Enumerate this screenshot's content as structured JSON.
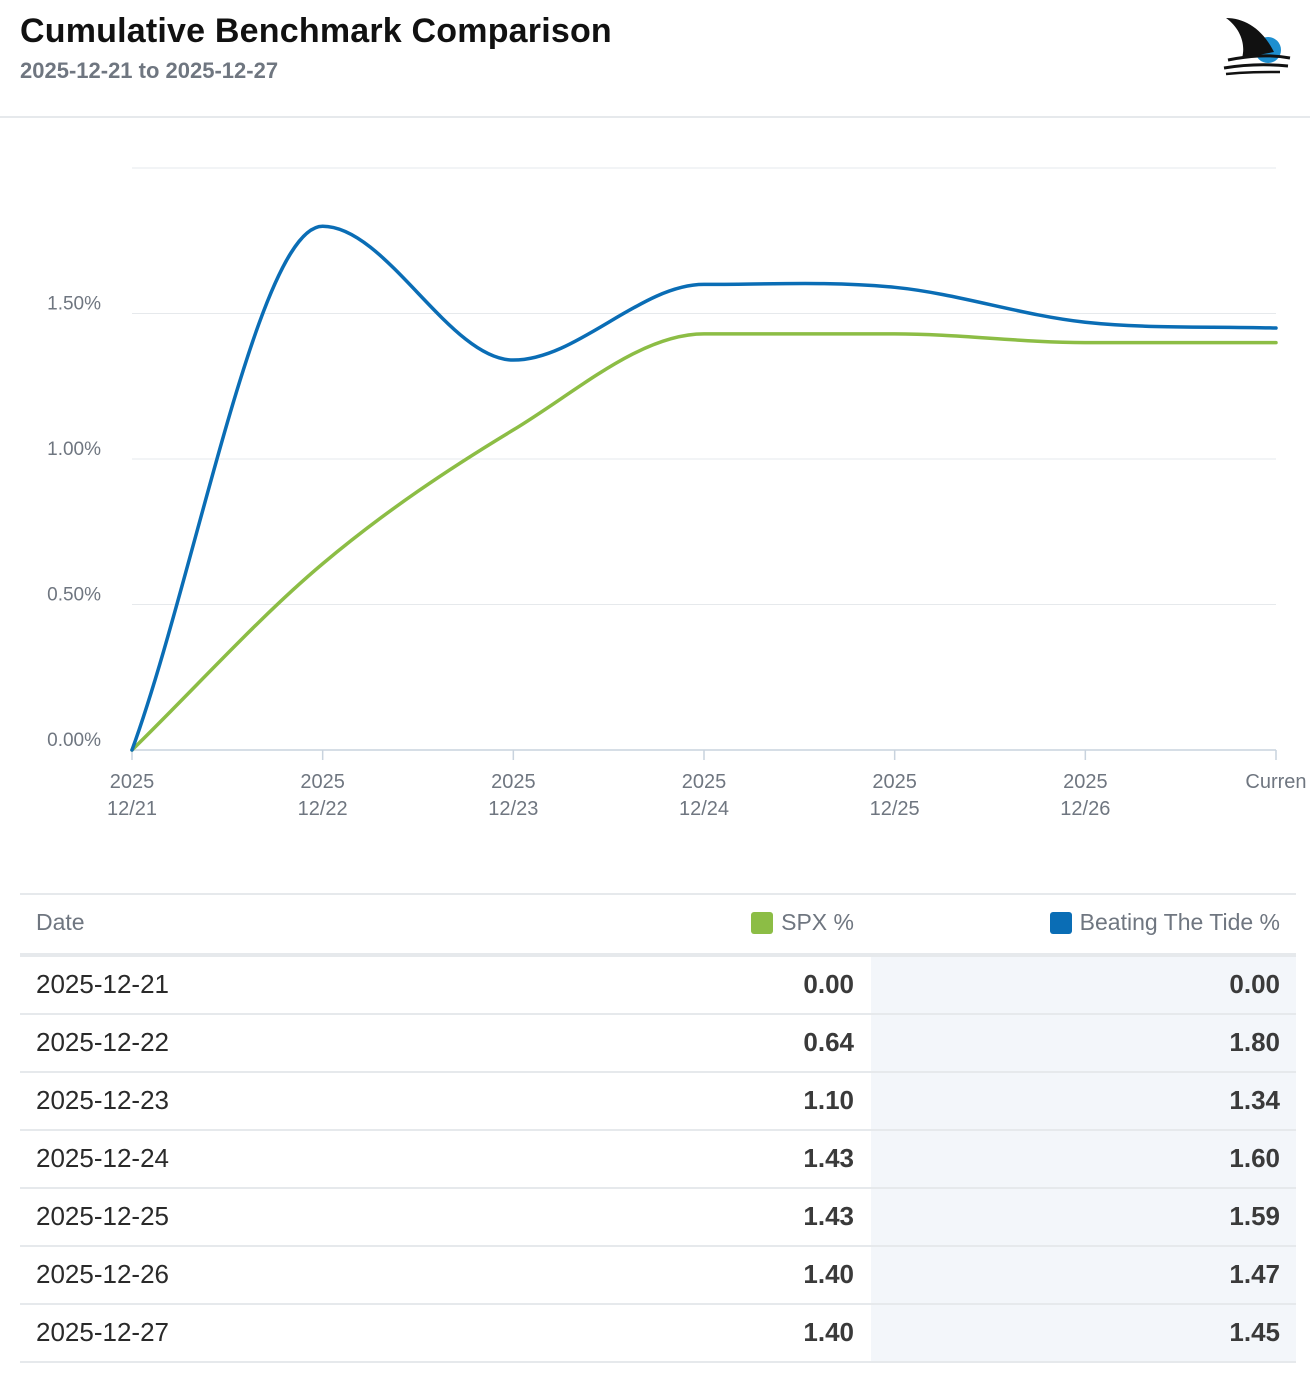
{
  "header": {
    "title": "Cumulative Benchmark Comparison",
    "date_range": "2025-12-21 to 2025-12-27"
  },
  "colors": {
    "spx": "#8cbd45",
    "btt": "#0a6db5",
    "grid": "#e6e9ec",
    "axis_text": "#6f7680"
  },
  "chart_data": {
    "type": "line",
    "x": [
      "2025\n12/21",
      "2025\n12/22",
      "2025\n12/23",
      "2025\n12/24",
      "2025\n12/25",
      "2025\n12/26",
      "Curren"
    ],
    "y_ticks": [
      "0.00%",
      "0.50%",
      "1.00%",
      "1.50%"
    ],
    "ylim": [
      0,
      2.0
    ],
    "grid": true,
    "series": [
      {
        "name": "SPX %",
        "color": "#8cbd45",
        "values": [
          0.0,
          0.64,
          1.1,
          1.43,
          1.43,
          1.4,
          1.4
        ]
      },
      {
        "name": "Beating The Tide %",
        "color": "#0a6db5",
        "values": [
          0.0,
          1.8,
          1.34,
          1.6,
          1.59,
          1.47,
          1.45
        ]
      }
    ]
  },
  "table": {
    "headers": {
      "date": "Date",
      "spx": "SPX %",
      "btt": "Beating The Tide %"
    },
    "rows": [
      {
        "date": "2025-12-21",
        "spx": "0.00",
        "btt": "0.00"
      },
      {
        "date": "2025-12-22",
        "spx": "0.64",
        "btt": "1.80"
      },
      {
        "date": "2025-12-23",
        "spx": "1.10",
        "btt": "1.34"
      },
      {
        "date": "2025-12-24",
        "spx": "1.43",
        "btt": "1.60"
      },
      {
        "date": "2025-12-25",
        "spx": "1.43",
        "btt": "1.59"
      },
      {
        "date": "2025-12-26",
        "spx": "1.40",
        "btt": "1.47"
      },
      {
        "date": "2025-12-27",
        "spx": "1.40",
        "btt": "1.45"
      }
    ]
  },
  "logo": {
    "icon": "shark-fin-logo-icon"
  }
}
